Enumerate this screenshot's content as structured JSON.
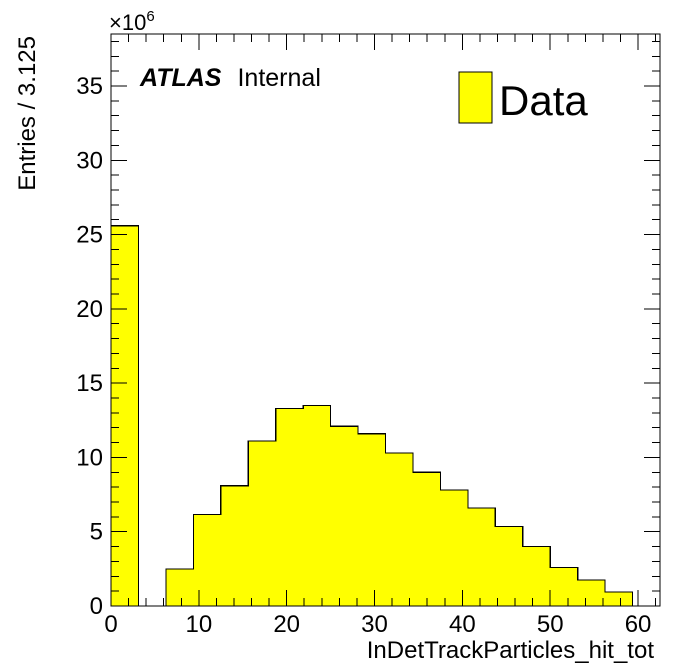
{
  "chart_data": {
    "type": "bar",
    "xlabel": "InDetTrackParticles_hit_tot",
    "ylabel": "Entries / 3.125",
    "y_exponent_label": "×10",
    "y_exponent_power": "6",
    "xlim": [
      0,
      62.5
    ],
    "ylim": [
      0,
      38.5
    ],
    "x_ticks": [
      "0",
      "10",
      "20",
      "30",
      "40",
      "50",
      "60"
    ],
    "y_ticks": [
      "0",
      "5",
      "10",
      "15",
      "20",
      "25",
      "30",
      "35"
    ],
    "bin_width": 3.125,
    "bins": [
      {
        "x0": 0.0,
        "value": 25.6
      },
      {
        "x0": 3.125,
        "value": 0
      },
      {
        "x0": 6.25,
        "value": 2.5
      },
      {
        "x0": 9.375,
        "value": 6.15
      },
      {
        "x0": 12.5,
        "value": 8.1
      },
      {
        "x0": 15.625,
        "value": 11.1
      },
      {
        "x0": 18.75,
        "value": 13.3
      },
      {
        "x0": 21.875,
        "value": 13.5
      },
      {
        "x0": 25.0,
        "value": 12.1
      },
      {
        "x0": 28.125,
        "value": 11.6
      },
      {
        "x0": 31.25,
        "value": 10.3
      },
      {
        "x0": 34.375,
        "value": 9.0
      },
      {
        "x0": 37.5,
        "value": 7.8
      },
      {
        "x0": 40.625,
        "value": 6.6
      },
      {
        "x0": 43.75,
        "value": 5.35
      },
      {
        "x0": 46.875,
        "value": 4.0
      },
      {
        "x0": 50.0,
        "value": 2.6
      },
      {
        "x0": 53.125,
        "value": 1.75
      },
      {
        "x0": 56.25,
        "value": 0.95
      },
      {
        "x0": 59.375,
        "value": 0
      }
    ],
    "legend": {
      "label": "Data",
      "position": "top-right"
    },
    "atlas_label": {
      "experiment": "ATLAS",
      "status": "Internal"
    },
    "fill_color": "#ffff00",
    "line_color": "#000000",
    "grid": false
  }
}
